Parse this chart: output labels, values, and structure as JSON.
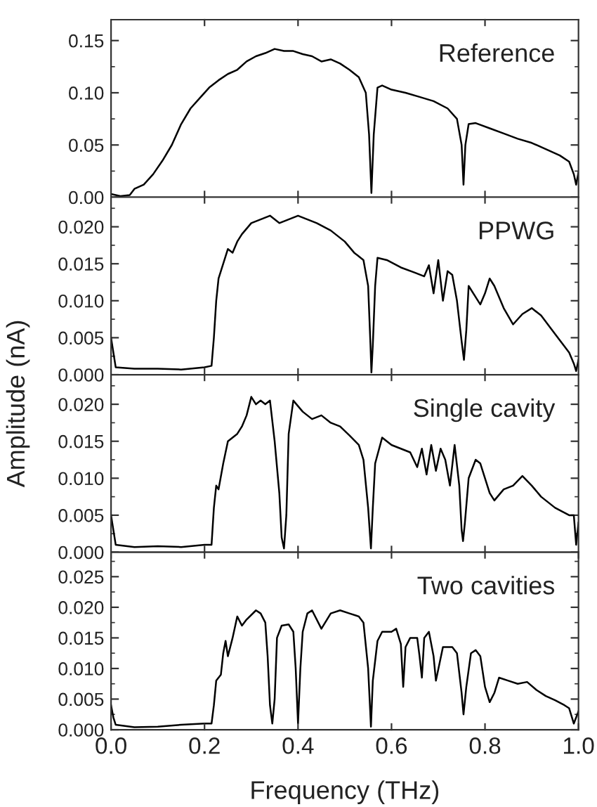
{
  "chart_data": [
    {
      "type": "line",
      "annotations": [
        "Reference"
      ],
      "xlim": [
        0,
        1.0
      ],
      "xticks": [
        0.2,
        0.4,
        0.6,
        0.8
      ],
      "ylim": [
        0,
        0.17
      ],
      "yticks": [
        {
          "value": 0,
          "label": "0.00"
        },
        {
          "value": 0.05,
          "label": "0.05"
        },
        {
          "value": 0.1,
          "label": "0.10"
        },
        {
          "value": 0.15,
          "label": "0.15"
        }
      ],
      "tick_labels": "y",
      "grid": false,
      "legend": false,
      "series": [
        {
          "color": "#000000",
          "x": [
            0,
            0.02,
            0.04,
            0.05,
            0.07,
            0.09,
            0.11,
            0.13,
            0.15,
            0.17,
            0.19,
            0.21,
            0.23,
            0.25,
            0.27,
            0.29,
            0.31,
            0.33,
            0.35,
            0.37,
            0.39,
            0.41,
            0.43,
            0.45,
            0.47,
            0.49,
            0.51,
            0.53,
            0.545,
            0.552,
            0.557,
            0.562,
            0.57,
            0.58,
            0.6,
            0.63,
            0.66,
            0.69,
            0.72,
            0.74,
            0.75,
            0.754,
            0.758,
            0.765,
            0.78,
            0.81,
            0.84,
            0.87,
            0.9,
            0.93,
            0.96,
            0.98,
            0.99,
            0.995,
            1.0
          ],
          "values": [
            0.003,
            0.001,
            0.002,
            0.008,
            0.012,
            0.022,
            0.035,
            0.05,
            0.07,
            0.085,
            0.095,
            0.105,
            0.112,
            0.118,
            0.122,
            0.13,
            0.135,
            0.138,
            0.142,
            0.14,
            0.14,
            0.137,
            0.135,
            0.13,
            0.132,
            0.128,
            0.122,
            0.115,
            0.1,
            0.06,
            0.004,
            0.06,
            0.105,
            0.107,
            0.103,
            0.1,
            0.096,
            0.092,
            0.085,
            0.075,
            0.05,
            0.012,
            0.05,
            0.07,
            0.071,
            0.066,
            0.061,
            0.056,
            0.052,
            0.046,
            0.04,
            0.034,
            0.022,
            0.012,
            0.024
          ]
        }
      ]
    },
    {
      "type": "line",
      "annotations": [
        "PPWG"
      ],
      "ylabel": "Amplitude (nA)",
      "xlim": [
        0,
        1.0
      ],
      "xticks": [
        0.2,
        0.4,
        0.6,
        0.8
      ],
      "ylim": [
        0,
        0.024
      ],
      "yticks": [
        {
          "value": 0,
          "label": "0.000"
        },
        {
          "value": 0.005,
          "label": "0.005"
        },
        {
          "value": 0.01,
          "label": "0.010"
        },
        {
          "value": 0.015,
          "label": "0.015"
        },
        {
          "value": 0.02,
          "label": "0.020"
        }
      ],
      "tick_labels": "y",
      "grid": false,
      "legend": false,
      "series": [
        {
          "color": "#000000",
          "x": [
            0,
            0.005,
            0.01,
            0.05,
            0.1,
            0.15,
            0.2,
            0.215,
            0.22,
            0.225,
            0.23,
            0.24,
            0.25,
            0.26,
            0.27,
            0.28,
            0.3,
            0.32,
            0.34,
            0.36,
            0.38,
            0.4,
            0.42,
            0.44,
            0.47,
            0.5,
            0.52,
            0.54,
            0.55,
            0.555,
            0.557,
            0.56,
            0.565,
            0.57,
            0.59,
            0.62,
            0.65,
            0.67,
            0.68,
            0.69,
            0.7,
            0.71,
            0.72,
            0.73,
            0.74,
            0.75,
            0.755,
            0.76,
            0.765,
            0.78,
            0.79,
            0.8,
            0.81,
            0.82,
            0.84,
            0.86,
            0.88,
            0.9,
            0.92,
            0.95,
            0.98,
            0.99,
            0.995,
            1.0
          ],
          "values": [
            0.005,
            0.003,
            0.001,
            0.0008,
            0.0008,
            0.0007,
            0.001,
            0.0012,
            0.005,
            0.01,
            0.013,
            0.015,
            0.017,
            0.0165,
            0.018,
            0.019,
            0.0205,
            0.021,
            0.0215,
            0.0205,
            0.021,
            0.0215,
            0.021,
            0.0205,
            0.0195,
            0.018,
            0.0165,
            0.0155,
            0.012,
            0.004,
            0.0003,
            0.004,
            0.012,
            0.0158,
            0.0155,
            0.0145,
            0.0138,
            0.0133,
            0.0148,
            0.011,
            0.0155,
            0.01,
            0.014,
            0.0135,
            0.01,
            0.0045,
            0.002,
            0.006,
            0.012,
            0.0105,
            0.0095,
            0.011,
            0.013,
            0.012,
            0.009,
            0.0068,
            0.0082,
            0.009,
            0.008,
            0.0055,
            0.003,
            0.0015,
            0.0005,
            0.002
          ]
        }
      ]
    },
    {
      "type": "line",
      "annotations": [
        "Single cavity"
      ],
      "xlim": [
        0,
        1.0
      ],
      "xticks": [
        0.2,
        0.4,
        0.6,
        0.8
      ],
      "ylim": [
        0,
        0.024
      ],
      "yticks": [
        {
          "value": 0,
          "label": "0.000"
        },
        {
          "value": 0.005,
          "label": "0.005"
        },
        {
          "value": 0.01,
          "label": "0.010"
        },
        {
          "value": 0.015,
          "label": "0.015"
        },
        {
          "value": 0.02,
          "label": "0.020"
        }
      ],
      "tick_labels": "y",
      "grid": false,
      "legend": false,
      "series": [
        {
          "color": "#000000",
          "x": [
            0,
            0.01,
            0.05,
            0.1,
            0.15,
            0.2,
            0.215,
            0.22,
            0.225,
            0.23,
            0.24,
            0.25,
            0.27,
            0.28,
            0.29,
            0.3,
            0.31,
            0.32,
            0.33,
            0.34,
            0.35,
            0.36,
            0.365,
            0.37,
            0.375,
            0.38,
            0.39,
            0.41,
            0.43,
            0.45,
            0.47,
            0.49,
            0.51,
            0.53,
            0.54,
            0.55,
            0.556,
            0.56,
            0.565,
            0.58,
            0.6,
            0.62,
            0.64,
            0.655,
            0.665,
            0.675,
            0.685,
            0.695,
            0.705,
            0.715,
            0.725,
            0.735,
            0.745,
            0.75,
            0.753,
            0.757,
            0.765,
            0.78,
            0.79,
            0.81,
            0.82,
            0.84,
            0.86,
            0.88,
            0.9,
            0.92,
            0.95,
            0.98,
            0.99,
            0.995,
            1.0
          ],
          "values": [
            0.005,
            0.001,
            0.0007,
            0.0008,
            0.0007,
            0.001,
            0.001,
            0.006,
            0.009,
            0.0085,
            0.012,
            0.015,
            0.016,
            0.017,
            0.0185,
            0.021,
            0.02,
            0.0205,
            0.02,
            0.0205,
            0.015,
            0.008,
            0.002,
            0.0005,
            0.005,
            0.016,
            0.0205,
            0.019,
            0.018,
            0.0185,
            0.0175,
            0.017,
            0.0158,
            0.0145,
            0.0125,
            0.006,
            0.0005,
            0.006,
            0.012,
            0.0155,
            0.0145,
            0.014,
            0.0135,
            0.0115,
            0.014,
            0.0105,
            0.0145,
            0.011,
            0.014,
            0.0125,
            0.009,
            0.0145,
            0.009,
            0.003,
            0.0015,
            0.004,
            0.01,
            0.0125,
            0.012,
            0.008,
            0.007,
            0.0085,
            0.009,
            0.0103,
            0.009,
            0.0075,
            0.006,
            0.005,
            0.005,
            0.001,
            0.004
          ]
        }
      ]
    },
    {
      "type": "line",
      "annotations": [
        "Two cavities"
      ],
      "xlabel": "Frequency (THz)",
      "xlim": [
        0,
        1.0
      ],
      "xticks": [
        {
          "value": 0,
          "label": "0.0"
        },
        0.2,
        0.4,
        0.6,
        0.8,
        {
          "value": 1,
          "label": "1.0"
        }
      ],
      "ylim": [
        0,
        0.029
      ],
      "yticks": [
        {
          "value": 0,
          "label": "0.000"
        },
        {
          "value": 0.005,
          "label": "0.005"
        },
        {
          "value": 0.01,
          "label": "0.010"
        },
        {
          "value": 0.015,
          "label": "0.015"
        },
        {
          "value": 0.02,
          "label": "0.020"
        },
        {
          "value": 0.025,
          "label": "0.025"
        }
      ],
      "grid": false,
      "legend": false,
      "series": [
        {
          "color": "#000000",
          "x": [
            0,
            0.005,
            0.01,
            0.05,
            0.1,
            0.15,
            0.2,
            0.215,
            0.22,
            0.225,
            0.235,
            0.24,
            0.245,
            0.25,
            0.26,
            0.27,
            0.28,
            0.29,
            0.31,
            0.32,
            0.33,
            0.335,
            0.34,
            0.345,
            0.35,
            0.355,
            0.365,
            0.38,
            0.39,
            0.395,
            0.4,
            0.405,
            0.41,
            0.42,
            0.43,
            0.45,
            0.47,
            0.49,
            0.51,
            0.53,
            0.54,
            0.55,
            0.556,
            0.56,
            0.57,
            0.58,
            0.6,
            0.61,
            0.62,
            0.625,
            0.63,
            0.64,
            0.655,
            0.66,
            0.665,
            0.67,
            0.68,
            0.69,
            0.695,
            0.71,
            0.73,
            0.74,
            0.75,
            0.754,
            0.76,
            0.77,
            0.78,
            0.79,
            0.8,
            0.81,
            0.82,
            0.83,
            0.85,
            0.87,
            0.89,
            0.91,
            0.93,
            0.95,
            0.97,
            0.98,
            0.99,
            1.0
          ],
          "values": [
            0.004,
            0.002,
            0.0008,
            0.0004,
            0.0005,
            0.0008,
            0.001,
            0.001,
            0.004,
            0.008,
            0.009,
            0.0125,
            0.0145,
            0.012,
            0.015,
            0.0185,
            0.017,
            0.018,
            0.0195,
            0.019,
            0.0175,
            0.012,
            0.004,
            0.001,
            0.005,
            0.015,
            0.017,
            0.0172,
            0.016,
            0.01,
            0.001,
            0.01,
            0.016,
            0.019,
            0.0195,
            0.0165,
            0.019,
            0.0195,
            0.019,
            0.0185,
            0.0175,
            0.01,
            0.0005,
            0.008,
            0.0145,
            0.016,
            0.016,
            0.0165,
            0.014,
            0.007,
            0.0135,
            0.015,
            0.015,
            0.012,
            0.0085,
            0.015,
            0.016,
            0.012,
            0.008,
            0.0135,
            0.0135,
            0.0125,
            0.006,
            0.0025,
            0.007,
            0.0125,
            0.013,
            0.012,
            0.007,
            0.0045,
            0.006,
            0.0085,
            0.008,
            0.0075,
            0.0078,
            0.0065,
            0.0055,
            0.0048,
            0.004,
            0.0035,
            0.001,
            0.003
          ]
        }
      ]
    }
  ]
}
